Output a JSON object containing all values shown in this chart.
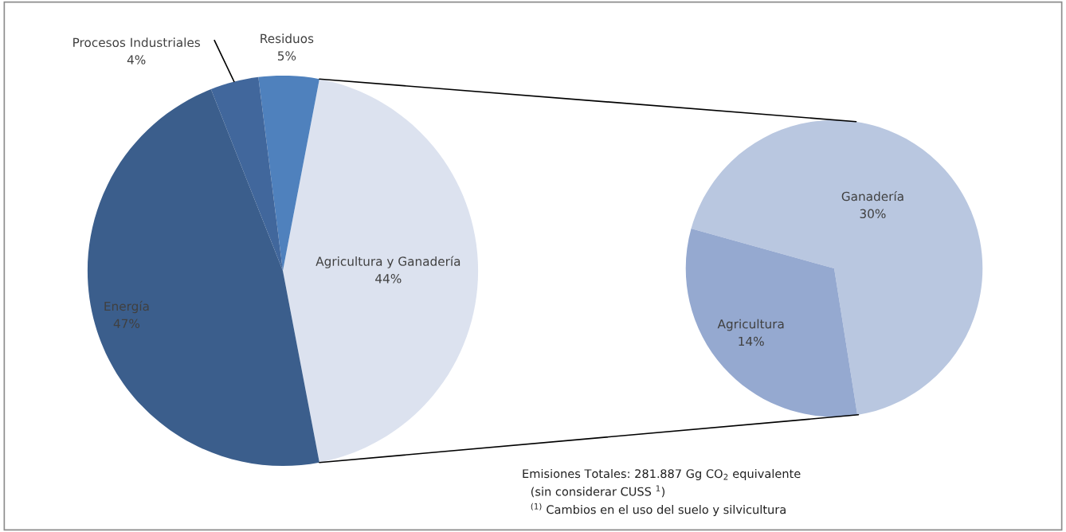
{
  "chart_data": [
    {
      "type": "pie",
      "categories": [
        "Agricultura y Ganadería",
        "Residuos",
        "Procesos Industriales",
        "Energía"
      ],
      "values": [
        44,
        5,
        4,
        47
      ],
      "colors": [
        "#dce2ef",
        "#4f81bd",
        "#41679c",
        "#3b5e8c"
      ],
      "value_labels": [
        "44%",
        "5%",
        "4%",
        "47%"
      ],
      "annotations": [
        "Emisiones Totales: 281.887 Gg CO$_{2}$ equivalente",
        "(sin considerar CUSS $^{1}$)",
        "$^{(1)}$ Cambios en el uso del suelo y silvicultura"
      ]
    },
    {
      "type": "pie",
      "categories": [
        "Ganadería",
        "Agricultura"
      ],
      "values": [
        30,
        14
      ],
      "colors": [
        "#b9c7e0",
        "#95a9d0"
      ],
      "value_labels": [
        "30%",
        "14%"
      ]
    }
  ]
}
